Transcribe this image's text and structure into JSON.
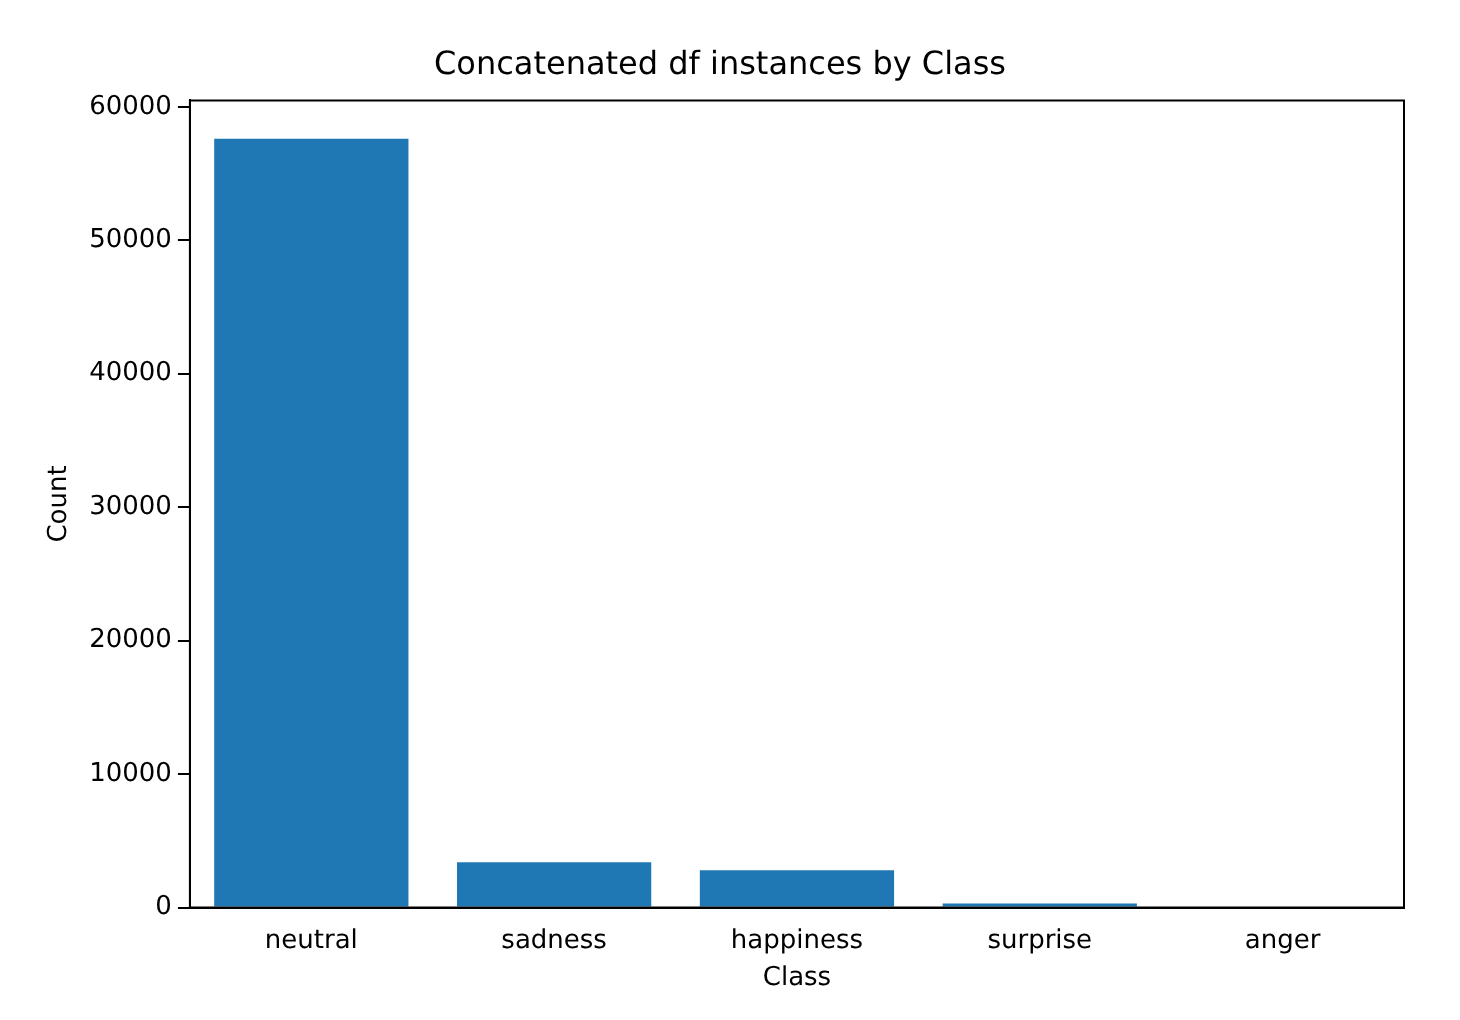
{
  "chart_data": {
    "type": "bar",
    "title": "Concatenated df instances by Class",
    "xlabel": "Class",
    "ylabel": "Count",
    "categories": [
      "neutral",
      "sadness",
      "happiness",
      "surprise",
      "anger"
    ],
    "values": [
      57600,
      3400,
      2800,
      300,
      null
    ],
    "color": "#1f77b4",
    "ylim": [
      0,
      60480
    ],
    "yticks": [
      0,
      10000,
      20000,
      30000,
      40000,
      50000,
      60000
    ],
    "grid": false,
    "legend": false
  }
}
